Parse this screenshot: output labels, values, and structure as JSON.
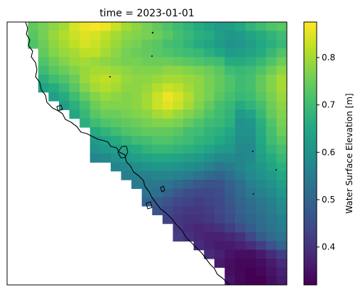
{
  "title": "time = 2023-01-01",
  "colorbar": {
    "label": "Water Surface Elevation [m]",
    "ticks": [
      0.4,
      0.5,
      0.6,
      0.7,
      0.8
    ],
    "tick_labels": [
      "0.4",
      "0.5",
      "0.6",
      "0.7",
      "0.8"
    ],
    "vmin": 0.32,
    "vmax": 0.875,
    "colormap": "viridis"
  },
  "chart_data": {
    "type": "heatmap",
    "title": "time = 2023-01-01",
    "colorbar_label": "Water Surface Elevation [m]",
    "value_range": [
      0.32,
      0.875
    ],
    "rows_description": "north to south",
    "cols_description": "west to east",
    "grid": [
      [
        null,
        null,
        0.74,
        0.76,
        0.78,
        0.8,
        0.84,
        0.86,
        0.87,
        0.86,
        0.83,
        0.8,
        0.78,
        0.76,
        0.74,
        0.72,
        0.7,
        0.68,
        0.66,
        0.64,
        0.62,
        0.63,
        0.65,
        0.68,
        0.7,
        0.72,
        0.73
      ],
      [
        null,
        null,
        0.73,
        0.76,
        0.79,
        0.81,
        0.83,
        0.85,
        0.84,
        0.82,
        0.8,
        0.78,
        0.77,
        0.76,
        0.75,
        0.73,
        0.71,
        0.69,
        0.67,
        0.66,
        0.63,
        0.61,
        0.62,
        0.64,
        0.66,
        0.68,
        0.7
      ],
      [
        null,
        null,
        0.72,
        0.75,
        0.78,
        0.8,
        0.82,
        0.84,
        0.83,
        0.81,
        0.79,
        0.77,
        0.76,
        0.74,
        0.73,
        0.71,
        0.7,
        0.68,
        0.66,
        0.64,
        0.62,
        0.6,
        0.61,
        0.63,
        0.65,
        0.67,
        0.69
      ],
      [
        null,
        null,
        null,
        0.74,
        0.77,
        0.79,
        0.8,
        0.82,
        0.82,
        0.8,
        0.78,
        0.76,
        0.75,
        0.74,
        0.73,
        0.72,
        0.71,
        0.7,
        0.69,
        0.67,
        0.65,
        0.62,
        0.63,
        0.64,
        0.66,
        0.69,
        0.72
      ],
      [
        null,
        null,
        null,
        0.72,
        0.75,
        0.77,
        0.79,
        0.8,
        0.79,
        0.78,
        0.77,
        0.76,
        0.76,
        0.75,
        0.75,
        0.75,
        0.74,
        0.73,
        0.72,
        0.71,
        0.7,
        0.66,
        0.66,
        0.67,
        0.69,
        0.72,
        0.75
      ],
      [
        null,
        null,
        null,
        0.7,
        0.73,
        0.75,
        0.77,
        0.79,
        0.8,
        0.8,
        0.79,
        0.78,
        0.77,
        0.77,
        0.77,
        0.78,
        0.78,
        0.77,
        0.76,
        0.75,
        0.73,
        0.7,
        0.69,
        0.7,
        0.72,
        0.75,
        0.78
      ],
      [
        null,
        null,
        null,
        0.67,
        0.7,
        0.72,
        0.75,
        0.79,
        0.81,
        0.82,
        0.81,
        0.79,
        0.78,
        0.78,
        0.79,
        0.8,
        0.8,
        0.79,
        0.78,
        0.76,
        0.74,
        0.72,
        0.7,
        0.71,
        0.74,
        0.77,
        0.8
      ],
      [
        null,
        null,
        null,
        0.64,
        0.66,
        0.69,
        0.73,
        0.77,
        0.8,
        0.81,
        0.8,
        0.78,
        0.78,
        0.79,
        0.81,
        0.83,
        0.82,
        0.8,
        0.78,
        0.76,
        0.74,
        0.72,
        0.7,
        0.71,
        0.74,
        0.77,
        0.8
      ],
      [
        null,
        null,
        null,
        null,
        0.63,
        0.66,
        0.7,
        0.74,
        0.77,
        0.79,
        0.78,
        0.77,
        0.78,
        0.8,
        0.83,
        0.86,
        0.84,
        0.81,
        0.78,
        0.76,
        0.73,
        0.71,
        0.69,
        0.7,
        0.73,
        0.76,
        0.79
      ],
      [
        null,
        null,
        null,
        null,
        null,
        0.63,
        0.67,
        0.71,
        0.75,
        0.77,
        0.77,
        0.77,
        0.78,
        0.8,
        0.83,
        0.85,
        0.83,
        0.8,
        0.77,
        0.74,
        0.71,
        0.69,
        0.66,
        0.68,
        0.71,
        0.75,
        0.78
      ],
      [
        null,
        null,
        null,
        null,
        null,
        null,
        0.65,
        0.69,
        0.73,
        0.75,
        0.75,
        0.76,
        0.77,
        0.78,
        0.8,
        0.81,
        0.79,
        0.77,
        0.75,
        0.72,
        0.7,
        0.68,
        0.62,
        0.64,
        0.69,
        0.74,
        0.77
      ],
      [
        null,
        null,
        null,
        null,
        null,
        null,
        null,
        0.67,
        0.7,
        0.72,
        0.73,
        0.74,
        0.75,
        0.76,
        0.77,
        0.77,
        0.76,
        0.74,
        0.72,
        0.7,
        0.69,
        0.67,
        0.6,
        0.61,
        0.67,
        0.72,
        0.76
      ],
      [
        null,
        null,
        null,
        null,
        null,
        null,
        null,
        null,
        0.66,
        0.68,
        0.7,
        0.72,
        0.73,
        0.74,
        0.74,
        0.74,
        0.73,
        0.71,
        0.7,
        0.68,
        0.67,
        0.65,
        0.6,
        0.6,
        0.66,
        0.71,
        0.75
      ],
      [
        null,
        null,
        null,
        null,
        null,
        null,
        null,
        null,
        0.62,
        0.64,
        0.66,
        0.68,
        0.7,
        0.71,
        0.72,
        0.72,
        0.71,
        0.7,
        0.68,
        0.67,
        0.65,
        0.63,
        0.59,
        0.59,
        0.65,
        0.7,
        0.73
      ],
      [
        null,
        null,
        null,
        null,
        null,
        null,
        null,
        null,
        0.6,
        0.62,
        0.63,
        0.65,
        0.66,
        0.68,
        0.69,
        0.69,
        0.68,
        0.67,
        0.66,
        0.64,
        0.62,
        0.61,
        0.58,
        0.58,
        0.64,
        0.68,
        0.71
      ],
      [
        null,
        null,
        null,
        null,
        null,
        null,
        null,
        null,
        0.57,
        0.58,
        0.6,
        0.62,
        0.63,
        0.64,
        0.65,
        0.65,
        0.64,
        0.63,
        0.62,
        0.6,
        0.58,
        0.58,
        0.57,
        0.58,
        0.63,
        0.66,
        0.69
      ],
      [
        null,
        null,
        null,
        null,
        null,
        null,
        null,
        null,
        null,
        null,
        0.57,
        0.58,
        0.59,
        0.6,
        0.61,
        0.61,
        0.6,
        0.59,
        0.58,
        0.56,
        0.54,
        0.55,
        0.57,
        0.59,
        0.61,
        0.64,
        0.67
      ],
      [
        null,
        null,
        null,
        null,
        null,
        null,
        null,
        null,
        null,
        null,
        null,
        0.56,
        0.56,
        0.56,
        0.57,
        0.57,
        0.56,
        0.55,
        0.53,
        0.51,
        0.5,
        0.52,
        0.55,
        0.58,
        0.6,
        0.62,
        0.65
      ],
      [
        null,
        null,
        null,
        null,
        null,
        null,
        null,
        null,
        null,
        null,
        null,
        null,
        0.55,
        0.54,
        0.54,
        0.53,
        0.51,
        0.49,
        0.47,
        0.46,
        0.46,
        0.49,
        0.52,
        0.56,
        0.58,
        0.6,
        0.63
      ],
      [
        null,
        null,
        null,
        null,
        null,
        null,
        null,
        null,
        null,
        null,
        null,
        null,
        null,
        0.53,
        0.52,
        0.5,
        0.47,
        0.45,
        0.44,
        0.44,
        0.45,
        0.48,
        0.51,
        0.54,
        0.56,
        0.58,
        0.61
      ],
      [
        null,
        null,
        null,
        null,
        null,
        null,
        null,
        null,
        null,
        null,
        null,
        null,
        null,
        0.5,
        0.48,
        0.46,
        0.44,
        0.43,
        0.42,
        0.43,
        0.44,
        0.47,
        0.5,
        0.52,
        0.54,
        0.56,
        0.59
      ],
      [
        null,
        null,
        null,
        null,
        null,
        null,
        null,
        null,
        null,
        null,
        null,
        null,
        null,
        null,
        0.46,
        0.44,
        0.42,
        0.41,
        0.41,
        0.42,
        0.44,
        0.46,
        0.49,
        0.51,
        0.53,
        0.55,
        0.58
      ],
      [
        null,
        null,
        null,
        null,
        null,
        null,
        null,
        null,
        null,
        null,
        null,
        null,
        null,
        null,
        null,
        0.43,
        0.41,
        0.4,
        0.4,
        0.41,
        0.43,
        0.45,
        0.48,
        0.5,
        0.52,
        0.54,
        0.56
      ],
      [
        null,
        null,
        null,
        null,
        null,
        null,
        null,
        null,
        null,
        null,
        null,
        null,
        null,
        null,
        null,
        null,
        0.41,
        0.39,
        0.38,
        0.39,
        0.4,
        0.42,
        0.45,
        0.48,
        0.51,
        0.53,
        0.55
      ],
      [
        null,
        null,
        null,
        null,
        null,
        null,
        null,
        null,
        null,
        null,
        null,
        null,
        null,
        null,
        null,
        null,
        0.42,
        0.4,
        0.38,
        0.37,
        0.37,
        0.38,
        0.4,
        0.44,
        0.48,
        0.51,
        0.53
      ],
      [
        null,
        null,
        null,
        null,
        null,
        null,
        null,
        null,
        null,
        null,
        null,
        null,
        null,
        null,
        null,
        null,
        null,
        null,
        0.39,
        0.37,
        0.36,
        0.36,
        0.37,
        0.39,
        0.42,
        0.46,
        0.5
      ],
      [
        null,
        null,
        null,
        null,
        null,
        null,
        null,
        null,
        null,
        null,
        null,
        null,
        null,
        null,
        null,
        null,
        null,
        null,
        null,
        0.39,
        0.37,
        0.35,
        0.34,
        0.34,
        0.36,
        0.39,
        0.42
      ],
      [
        null,
        null,
        null,
        null,
        null,
        null,
        null,
        null,
        null,
        null,
        null,
        null,
        null,
        null,
        null,
        null,
        null,
        null,
        null,
        null,
        0.36,
        0.34,
        0.33,
        0.33,
        0.34,
        0.36,
        0.39
      ],
      [
        null,
        null,
        null,
        null,
        null,
        null,
        null,
        null,
        null,
        null,
        null,
        null,
        null,
        null,
        null,
        null,
        null,
        null,
        null,
        null,
        null,
        0.34,
        0.33,
        0.32,
        0.33,
        0.35,
        0.37
      ],
      [
        null,
        null,
        null,
        null,
        null,
        null,
        null,
        null,
        null,
        null,
        null,
        null,
        null,
        null,
        null,
        null,
        null,
        null,
        null,
        null,
        null,
        0.35,
        0.33,
        0.32,
        0.32,
        0.34,
        0.36
      ]
    ]
  }
}
